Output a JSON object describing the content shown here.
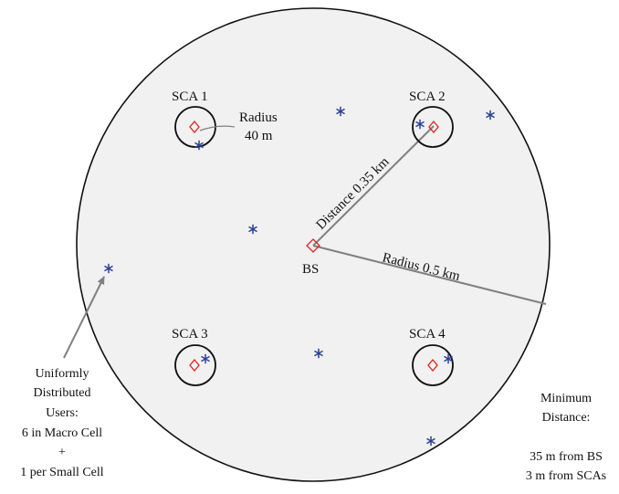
{
  "colors": {
    "macro_cell_fill": "#f0f1f0",
    "outline": "#111111",
    "station_marker": "#e02020",
    "user_marker": "#2b3f9a",
    "connector_line": "#808080"
  },
  "macro_cell": {
    "radius_label": "Radius 0.5 km",
    "bs_label": "BS",
    "distance_label": "Distance 0.35 km"
  },
  "small_cells": [
    {
      "label": "SCA 1"
    },
    {
      "label": "SCA 2"
    },
    {
      "label": "SCA 3"
    },
    {
      "label": "SCA 4"
    }
  ],
  "small_cell_radius": {
    "line1": "Radius",
    "line2": "40 m"
  },
  "users_note": {
    "lines": [
      "Uniformly",
      "Distributed",
      "Users:",
      "6 in Macro Cell",
      "+",
      "1 per Small Cell"
    ]
  },
  "min_distance_note": {
    "lines": [
      "Minimum",
      "Distance:",
      "",
      "35 m from BS",
      "3 m from SCAs"
    ]
  },
  "icons": {
    "station": "diamond-marker-icon",
    "user": "asterisk-user-icon"
  }
}
